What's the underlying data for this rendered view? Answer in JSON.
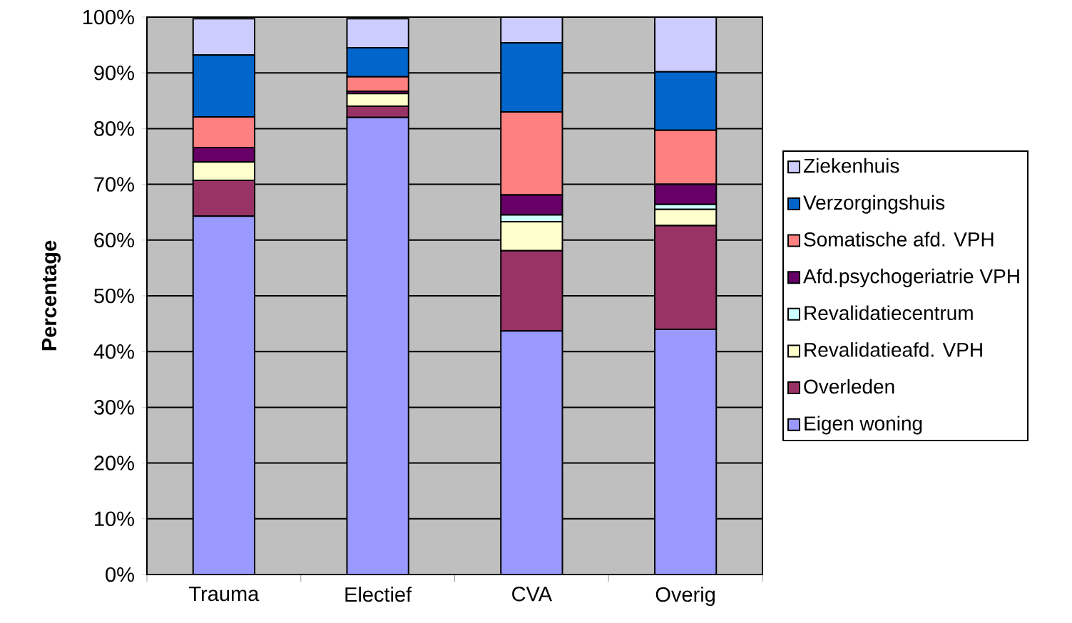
{
  "chart_data": {
    "type": "bar",
    "stacked": true,
    "ylabel": "Percentage",
    "categories": [
      "Trauma",
      "Electief",
      "CVA",
      "Overig"
    ],
    "series": [
      {
        "name": "Eigen woning",
        "color": "#9999ff",
        "values": [
          64.3,
          82.0,
          43.7,
          44.0
        ]
      },
      {
        "name": "Overleden",
        "color": "#993366",
        "values": [
          6.4,
          2.0,
          14.4,
          18.6
        ]
      },
      {
        "name": "Revalidatieafd. VPH",
        "color": "#ffffcc",
        "values": [
          3.3,
          2.3,
          5.2,
          2.9
        ]
      },
      {
        "name": "Revalidatiecentrum",
        "color": "#ccffff",
        "values": [
          null,
          null,
          1.2,
          0.9
        ]
      },
      {
        "name": "Afd.psychogeriatrie VPH",
        "color": "#660066",
        "values": [
          2.6,
          0.4,
          3.6,
          3.6
        ]
      },
      {
        "name": "Somatische afd. VPH",
        "color": "#ff8080",
        "values": [
          5.5,
          2.6,
          14.9,
          9.7
        ]
      },
      {
        "name": "Verzorgingshuis",
        "color": "#0066cc",
        "values": [
          11.1,
          5.2,
          12.4,
          10.5
        ]
      },
      {
        "name": "Ziekenhuis",
        "color": "#ccccff",
        "values": [
          6.5,
          5.2,
          4.6,
          9.8
        ]
      }
    ],
    "ylim": [
      0,
      100
    ],
    "yticks": [
      {
        "value": 0,
        "label": "0%"
      },
      {
        "value": 10,
        "label": "10%"
      },
      {
        "value": 20,
        "label": "20%"
      },
      {
        "value": 30,
        "label": "30%"
      },
      {
        "value": 40,
        "label": "40%"
      },
      {
        "value": 50,
        "label": "50%"
      },
      {
        "value": 60,
        "label": "60%"
      },
      {
        "value": 70,
        "label": "70%"
      },
      {
        "value": 80,
        "label": "80%"
      },
      {
        "value": 90,
        "label": "90%"
      },
      {
        "value": 100,
        "label": "100%"
      }
    ],
    "grid": "y",
    "legend": "right"
  }
}
